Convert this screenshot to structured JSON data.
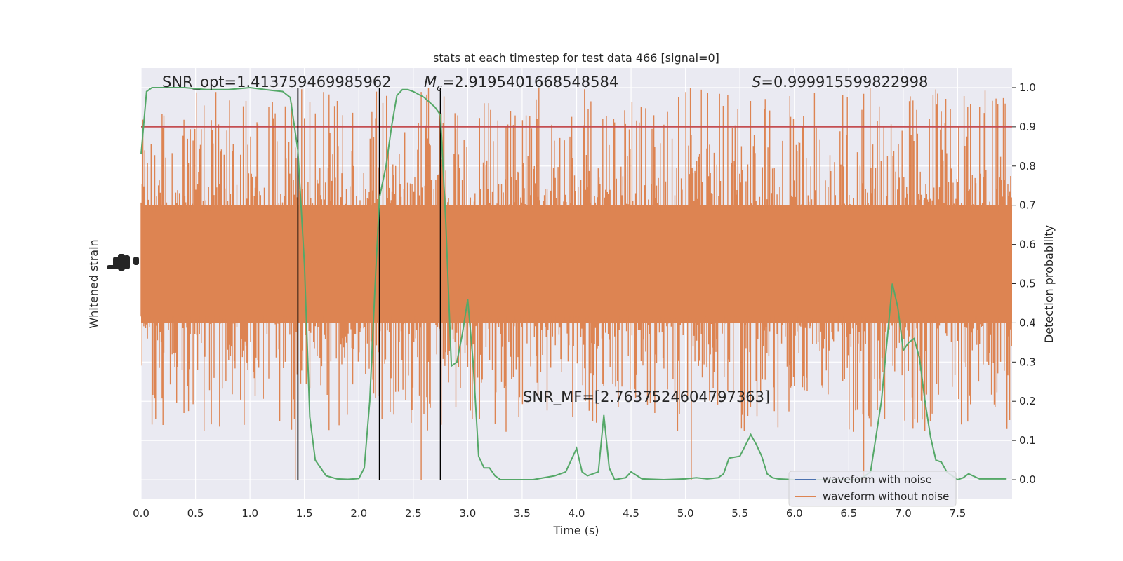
{
  "chart_data": {
    "type": "line",
    "title": "stats at each timestep for test data 466 [signal=0]",
    "xlabel": "Time (s)",
    "ylabel_left": "Whitened strain",
    "ylabel_right": "Detection probability",
    "xlim": [
      0.0,
      8.0
    ],
    "ylim_right": [
      -0.05,
      1.05
    ],
    "x_ticks": [
      "0.0",
      "0.5",
      "1.0",
      "1.5",
      "2.0",
      "2.5",
      "3.0",
      "3.5",
      "4.0",
      "4.5",
      "5.0",
      "5.5",
      "6.0",
      "6.5",
      "7.0",
      "7.5"
    ],
    "y_ticks_right": [
      "0.0",
      "0.1",
      "0.2",
      "0.3",
      "0.4",
      "0.5",
      "0.6",
      "0.7",
      "0.8",
      "0.9",
      "1.0"
    ],
    "grid": true,
    "legend": {
      "placement": "lower-right",
      "entries": [
        {
          "label": "waveform with noise",
          "color": "#4c72b0"
        },
        {
          "label": "waveform without noise",
          "color": "#dd8452"
        }
      ]
    },
    "annotations": {
      "snr_opt": "SNR_opt=1.413759469985962",
      "mc_symbol": "M",
      "mc_sub": "c",
      "mc_value": "=2.9195401668548584",
      "s_symbol": "S",
      "s_value": "=0.999915599822998",
      "snr_mf": "SNR_MF=[2.7637524604797363]"
    },
    "threshold": {
      "y": 0.9,
      "color": "#c44e52"
    },
    "vertical_lines": [
      1.44,
      2.19,
      2.75
    ],
    "waveform_color": "#dd8452",
    "probability_color": "#55a868",
    "probability": {
      "x": [
        0.0,
        0.05,
        0.1,
        0.2,
        0.4,
        0.6,
        0.8,
        1.0,
        1.2,
        1.3,
        1.37,
        1.44,
        1.5,
        1.55,
        1.6,
        1.7,
        1.8,
        1.9,
        2.0,
        2.05,
        2.1,
        2.15,
        2.19,
        2.25,
        2.3,
        2.35,
        2.4,
        2.45,
        2.5,
        2.6,
        2.7,
        2.75,
        2.8,
        2.85,
        2.9,
        2.95,
        3.0,
        3.05,
        3.1,
        3.15,
        3.2,
        3.25,
        3.3,
        3.4,
        3.6,
        3.8,
        3.9,
        4.0,
        4.05,
        4.1,
        4.2,
        4.25,
        4.3,
        4.35,
        4.45,
        4.5,
        4.6,
        4.8,
        5.0,
        5.1,
        5.2,
        5.3,
        5.35,
        5.4,
        5.5,
        5.6,
        5.65,
        5.7,
        5.75,
        5.8,
        5.85,
        6.0,
        6.2,
        6.4,
        6.6,
        6.7,
        6.8,
        6.9,
        6.95,
        7.0,
        7.05,
        7.1,
        7.15,
        7.2,
        7.25,
        7.3,
        7.35,
        7.4,
        7.5,
        7.55,
        7.6,
        7.7,
        7.8,
        7.9,
        7.95
      ],
      "y": [
        0.83,
        0.99,
        1.0,
        1.0,
        1.0,
        0.995,
        0.995,
        1.0,
        0.993,
        0.99,
        0.975,
        0.84,
        0.55,
        0.16,
        0.05,
        0.01,
        0.002,
        0.001,
        0.003,
        0.03,
        0.2,
        0.5,
        0.72,
        0.8,
        0.9,
        0.98,
        0.995,
        0.995,
        0.99,
        0.975,
        0.95,
        0.93,
        0.65,
        0.29,
        0.3,
        0.37,
        0.46,
        0.3,
        0.06,
        0.03,
        0.03,
        0.01,
        0.0,
        0.0,
        0.0,
        0.01,
        0.02,
        0.08,
        0.02,
        0.01,
        0.02,
        0.165,
        0.03,
        0.0,
        0.005,
        0.02,
        0.002,
        0.0,
        0.002,
        0.005,
        0.002,
        0.005,
        0.015,
        0.055,
        0.06,
        0.115,
        0.09,
        0.06,
        0.015,
        0.005,
        0.002,
        0.0,
        0.0,
        0.0,
        0.0,
        0.02,
        0.2,
        0.5,
        0.44,
        0.33,
        0.35,
        0.36,
        0.31,
        0.2,
        0.11,
        0.05,
        0.045,
        0.02,
        0.0,
        0.005,
        0.015,
        0.002,
        0.002,
        0.002,
        0.002
      ]
    }
  }
}
